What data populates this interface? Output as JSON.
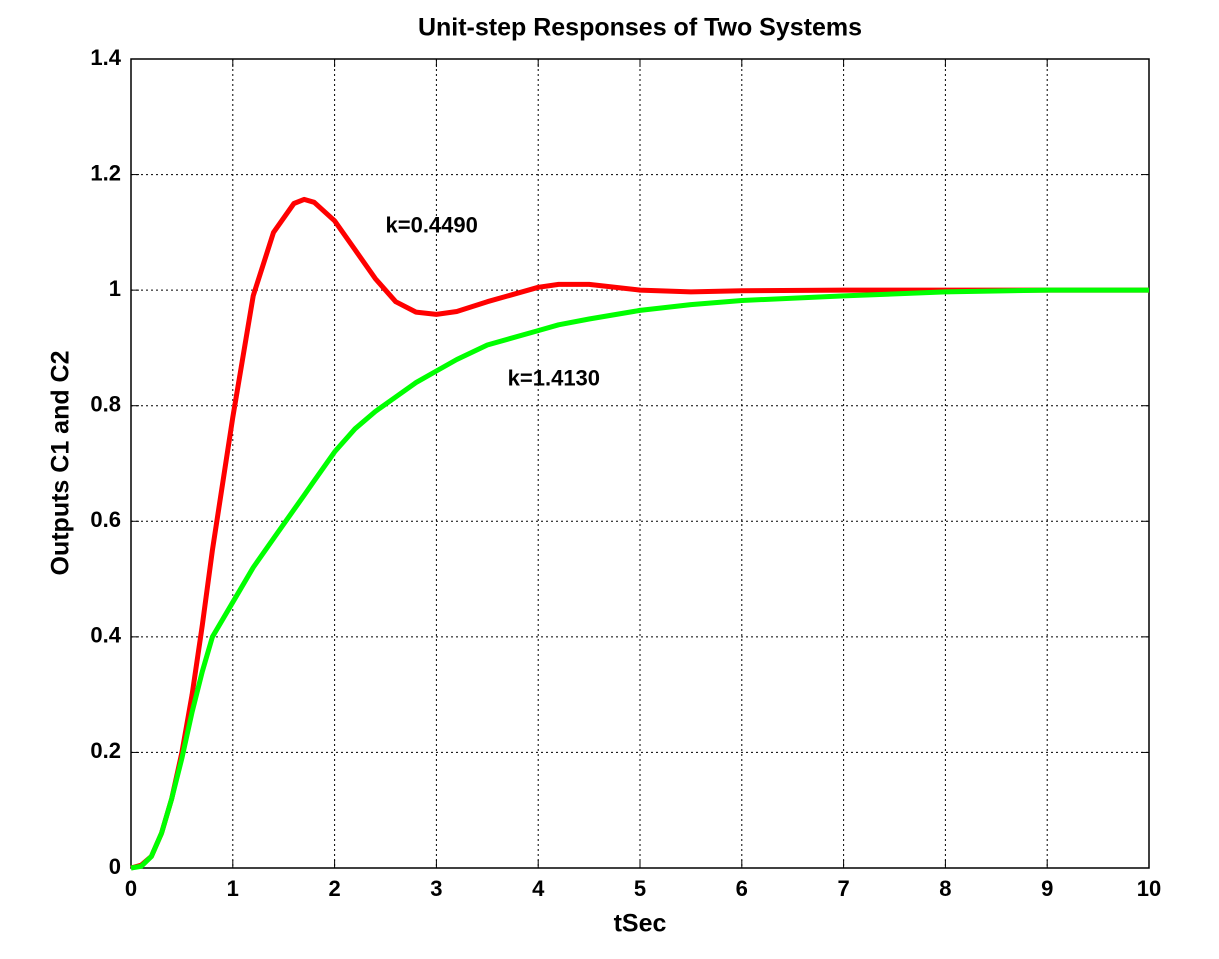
{
  "chart_data": {
    "type": "line",
    "title": "Unit-step Responses of Two Systems",
    "x_label": "tSec",
    "y_label": "Outputs C1 and C2",
    "x": [
      0,
      0.1,
      0.2,
      0.3,
      0.4,
      0.5,
      0.6,
      0.7,
      0.8,
      1.0,
      1.2,
      1.4,
      1.6,
      1.7,
      1.8,
      2.0,
      2.2,
      2.4,
      2.6,
      2.8,
      3.0,
      3.2,
      3.5,
      4.0,
      4.2,
      4.5,
      5.0,
      5.5,
      6.0,
      7.0,
      8.0,
      9.0,
      10.0
    ],
    "series": [
      {
        "color": "#ff0000",
        "values": [
          0,
          0.005,
          0.02,
          0.06,
          0.12,
          0.2,
          0.3,
          0.42,
          0.55,
          0.78,
          0.99,
          1.1,
          1.15,
          1.157,
          1.152,
          1.12,
          1.07,
          1.02,
          0.98,
          0.962,
          0.958,
          0.963,
          0.98,
          1.005,
          1.01,
          1.01,
          1.0,
          0.997,
          0.999,
          1.0,
          1.0,
          1.0,
          1.0
        ]
      },
      {
        "color": "#00ff00",
        "values": [
          0,
          0.003,
          0.02,
          0.06,
          0.12,
          0.19,
          0.27,
          0.34,
          0.4,
          0.46,
          0.52,
          0.57,
          0.62,
          0.645,
          0.67,
          0.72,
          0.76,
          0.79,
          0.815,
          0.84,
          0.86,
          0.88,
          0.905,
          0.93,
          0.94,
          0.95,
          0.965,
          0.975,
          0.982,
          0.99,
          0.997,
          1.0,
          1.0
        ]
      }
    ],
    "annotations": [
      {
        "text": "k=0.4490",
        "x": 2.5,
        "y": 1.11
      },
      {
        "text": "k=1.4130",
        "x": 3.7,
        "y": 0.845
      }
    ],
    "xlim": [
      0,
      10
    ],
    "ylim": [
      0,
      1.4
    ],
    "xticks": [
      0,
      1,
      2,
      3,
      4,
      5,
      6,
      7,
      8,
      9,
      10
    ],
    "yticks": [
      0,
      0.2,
      0.4,
      0.6,
      0.8,
      1,
      1.2,
      1.4
    ],
    "grid": true
  }
}
